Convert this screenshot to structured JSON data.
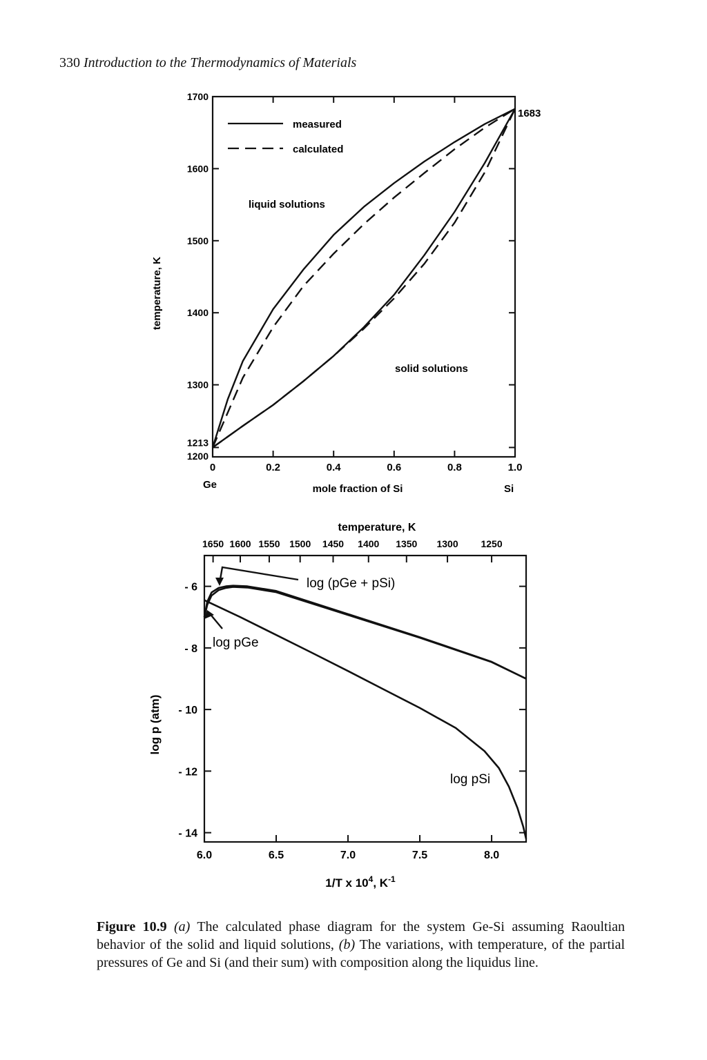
{
  "page": {
    "number": "330",
    "title": "Introduction to the Thermodynamics of Materials"
  },
  "figure_a": {
    "xlabel": "mole fraction of Si",
    "ylabel": "temperature, K",
    "left_end_label": "Ge",
    "right_end_label": "Si",
    "melting_point_si": "1683",
    "melting_point_ge": "1213",
    "region_liquid": "liquid solutions",
    "region_solid": "solid solutions",
    "legend": {
      "measured": "measured",
      "calculated": "calculated"
    }
  },
  "figure_b": {
    "top_axis_label": "temperature, K",
    "ylabel": "log p (atm)",
    "xlabel_main": "1/T x 10",
    "xlabel_exp": "4",
    "xlabel_unit": ", K",
    "xlabel_unit_exp": "-1",
    "label_sum": "log (pGe + pSi)",
    "label_ge": "log pGe",
    "label_si": "log pSi"
  },
  "chart_data": [
    {
      "type": "line",
      "xlabel": "mole fraction of Si",
      "ylabel": "temperature, K",
      "xlim": [
        0,
        1.0
      ],
      "ylim": [
        1200,
        1700
      ],
      "x_ticks": [
        0,
        0.2,
        0.4,
        0.6,
        0.8,
        1.0
      ],
      "x_tick_labels": [
        "0",
        "0.2",
        "0.4",
        "0.6",
        "0.8",
        "1.0"
      ],
      "y_ticks": [
        1200,
        1213,
        1300,
        1400,
        1500,
        1600,
        1700
      ],
      "y_tick_labels": [
        "1200",
        "1213",
        "1300",
        "1400",
        "1500",
        "1600",
        "1700"
      ],
      "series": [
        {
          "name": "measured",
          "style": "solid",
          "curve": "liquidus",
          "x": [
            0,
            0.05,
            0.1,
            0.2,
            0.3,
            0.4,
            0.5,
            0.6,
            0.7,
            0.8,
            0.9,
            1.0
          ],
          "y": [
            1213,
            1280,
            1333,
            1405,
            1460,
            1508,
            1547,
            1580,
            1610,
            1637,
            1662,
            1683
          ]
        },
        {
          "name": "measured",
          "style": "solid",
          "curve": "solidus",
          "x": [
            0,
            0.1,
            0.2,
            0.3,
            0.4,
            0.5,
            0.6,
            0.7,
            0.8,
            0.9,
            1.0
          ],
          "y": [
            1213,
            1243,
            1272,
            1305,
            1340,
            1380,
            1425,
            1480,
            1540,
            1608,
            1683
          ]
        },
        {
          "name": "calculated",
          "style": "dashed",
          "curve": "liquidus",
          "x": [
            0,
            0.1,
            0.2,
            0.3,
            0.4,
            0.5,
            0.6,
            0.7,
            0.8,
            0.9,
            1.0
          ],
          "y": [
            1213,
            1310,
            1380,
            1437,
            1482,
            1523,
            1560,
            1594,
            1627,
            1657,
            1683
          ]
        },
        {
          "name": "calculated",
          "style": "dashed",
          "curve": "solidus",
          "x": [
            0,
            0.1,
            0.2,
            0.3,
            0.4,
            0.5,
            0.6,
            0.7,
            0.8,
            0.9,
            1.0
          ],
          "y": [
            1213,
            1243,
            1272,
            1305,
            1340,
            1378,
            1420,
            1468,
            1525,
            1595,
            1683
          ]
        }
      ]
    },
    {
      "type": "line",
      "ylabel": "log p (atm)",
      "xlabel": "1/T x 10^4, K^-1",
      "top_xlabel": "temperature, K",
      "xlim": [
        6.0,
        8.24
      ],
      "ylim": [
        -14.3,
        -5.0
      ],
      "x_ticks": [
        6.0,
        6.5,
        7.0,
        7.5,
        8.0
      ],
      "x_tick_labels": [
        "6.0",
        "6.5",
        "7.0",
        "7.5",
        "8.0"
      ],
      "y_ticks": [
        -6,
        -8,
        -10,
        -12,
        -14
      ],
      "y_tick_labels": [
        "- 6",
        "- 8",
        "- 10",
        "- 12",
        "- 14"
      ],
      "top_ticks_K": [
        1650,
        1600,
        1550,
        1500,
        1450,
        1400,
        1350,
        1300,
        1250
      ],
      "top_tick_labels": [
        "1650",
        "1600",
        "1550",
        "1500",
        "1450",
        "1400",
        "1350",
        "1300",
        "1250"
      ],
      "series": [
        {
          "name": "log (pGe + pSi)",
          "x": [
            6.0,
            6.02,
            6.05,
            6.1,
            6.15,
            6.2,
            6.3,
            6.5,
            7.0,
            7.5,
            8.0,
            8.24
          ],
          "y": [
            -7.0,
            -6.5,
            -6.2,
            -6.05,
            -6.0,
            -5.98,
            -6.0,
            -6.15,
            -6.9,
            -7.65,
            -8.45,
            -9.0
          ]
        },
        {
          "name": "log pGe",
          "x": [
            6.0,
            6.02,
            6.05,
            6.1,
            6.15,
            6.2,
            6.3,
            6.5,
            7.0,
            7.5,
            8.0,
            8.24
          ],
          "y": [
            -7.0,
            -6.6,
            -6.3,
            -6.12,
            -6.05,
            -6.02,
            -6.04,
            -6.19,
            -6.93,
            -7.67,
            -8.46,
            -9.0
          ]
        },
        {
          "name": "log pSi",
          "x": [
            6.0,
            6.25,
            6.5,
            6.75,
            7.0,
            7.25,
            7.5,
            7.75,
            7.95,
            8.05,
            8.12,
            8.18,
            8.22,
            8.24
          ],
          "y": [
            -6.45,
            -7.0,
            -7.58,
            -8.16,
            -8.75,
            -9.35,
            -9.95,
            -10.6,
            -11.35,
            -11.9,
            -12.5,
            -13.2,
            -13.8,
            -14.2
          ]
        }
      ]
    }
  ],
  "caption": {
    "label": "Figure 10.9",
    "part_a": "(a)",
    "text_a": "The calculated phase diagram for the system Ge-Si assuming Raoultian behavior of the solid and liquid solutions,",
    "part_b": "(b)",
    "text_b": "The variations, with temperature, of the partial pressures of Ge and Si (and their sum) with composition along the liquidus line."
  }
}
